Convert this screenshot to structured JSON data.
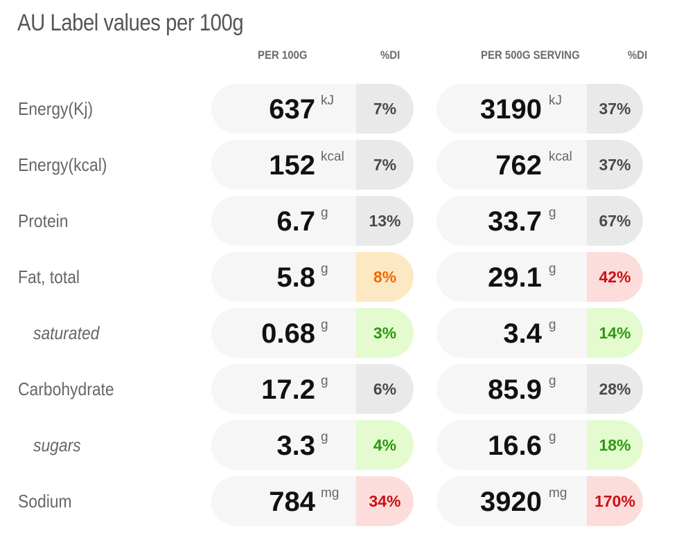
{
  "title": "AU Label values per 100g",
  "headers": {
    "per100": "PER 100G",
    "di1": "%DI",
    "serving": "PER 500G SERVING",
    "di2": "%DI"
  },
  "rows": [
    {
      "label": "Energy(Kj)",
      "sub": false,
      "v100": "637",
      "u100": "kJ",
      "di100": "7%",
      "c100": "neutral",
      "vs": "3190",
      "us": "kJ",
      "dis": "37%",
      "cs": "neutral"
    },
    {
      "label": "Energy(kcal)",
      "sub": false,
      "v100": "152",
      "u100": "kcal",
      "di100": "7%",
      "c100": "neutral",
      "vs": "762",
      "us": "kcal",
      "dis": "37%",
      "cs": "neutral"
    },
    {
      "label": "Protein",
      "sub": false,
      "v100": "6.7",
      "u100": "g",
      "di100": "13%",
      "c100": "neutral",
      "vs": "33.7",
      "us": "g",
      "dis": "67%",
      "cs": "neutral"
    },
    {
      "label": "Fat, total",
      "sub": false,
      "v100": "5.8",
      "u100": "g",
      "di100": "8%",
      "c100": "orange",
      "vs": "29.1",
      "us": "g",
      "dis": "42%",
      "cs": "red"
    },
    {
      "label": "saturated",
      "sub": true,
      "v100": "0.68",
      "u100": "g",
      "di100": "3%",
      "c100": "green",
      "vs": "3.4",
      "us": "g",
      "dis": "14%",
      "cs": "green"
    },
    {
      "label": "Carbohydrate",
      "sub": false,
      "v100": "17.2",
      "u100": "g",
      "di100": "6%",
      "c100": "neutral",
      "vs": "85.9",
      "us": "g",
      "dis": "28%",
      "cs": "neutral"
    },
    {
      "label": "sugars",
      "sub": true,
      "v100": "3.3",
      "u100": "g",
      "di100": "4%",
      "c100": "green",
      "vs": "16.6",
      "us": "g",
      "dis": "18%",
      "cs": "green"
    },
    {
      "label": "Sodium",
      "sub": false,
      "v100": "784",
      "u100": "mg",
      "di100": "34%",
      "c100": "red",
      "vs": "3920",
      "us": "mg",
      "dis": "170%",
      "cs": "red"
    }
  ],
  "colors": {
    "neutral": "#e9e9e9",
    "orange": "#fde8c4",
    "green": "#e3fbcf",
    "red": "#fddcdc"
  }
}
